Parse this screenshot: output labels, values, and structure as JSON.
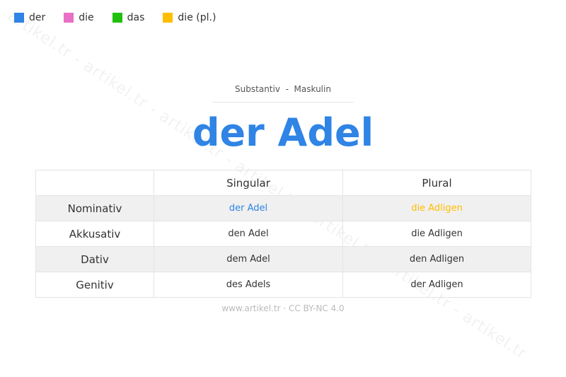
{
  "legend": [
    {
      "label": "der",
      "color": "#2f84e5"
    },
    {
      "label": "die",
      "color": "#ea6fc6"
    },
    {
      "label": "das",
      "color": "#22c00e"
    },
    {
      "label": "die (pl.)",
      "color": "#ffbe00"
    }
  ],
  "watermark": "artikel.tr - artikel.tr - artikel.tr - artikel.tr - artikel.tr - artikel.tr - artikel.tr",
  "subtitle": "Substantiv  -  Maskulin",
  "title": "der Adel",
  "table": {
    "headers": [
      "",
      "Singular",
      "Plural"
    ],
    "rows": [
      {
        "case": "Nominativ",
        "singular": "der Adel",
        "plural": "die Adligen"
      },
      {
        "case": "Akkusativ",
        "singular": "den Adel",
        "plural": "die Adligen"
      },
      {
        "case": "Dativ",
        "singular": "dem Adel",
        "plural": "den Adligen"
      },
      {
        "case": "Genitiv",
        "singular": "des Adels",
        "plural": "der Adligen"
      }
    ]
  },
  "footer": "www.artikel.tr · CC BY-NC 4.0"
}
